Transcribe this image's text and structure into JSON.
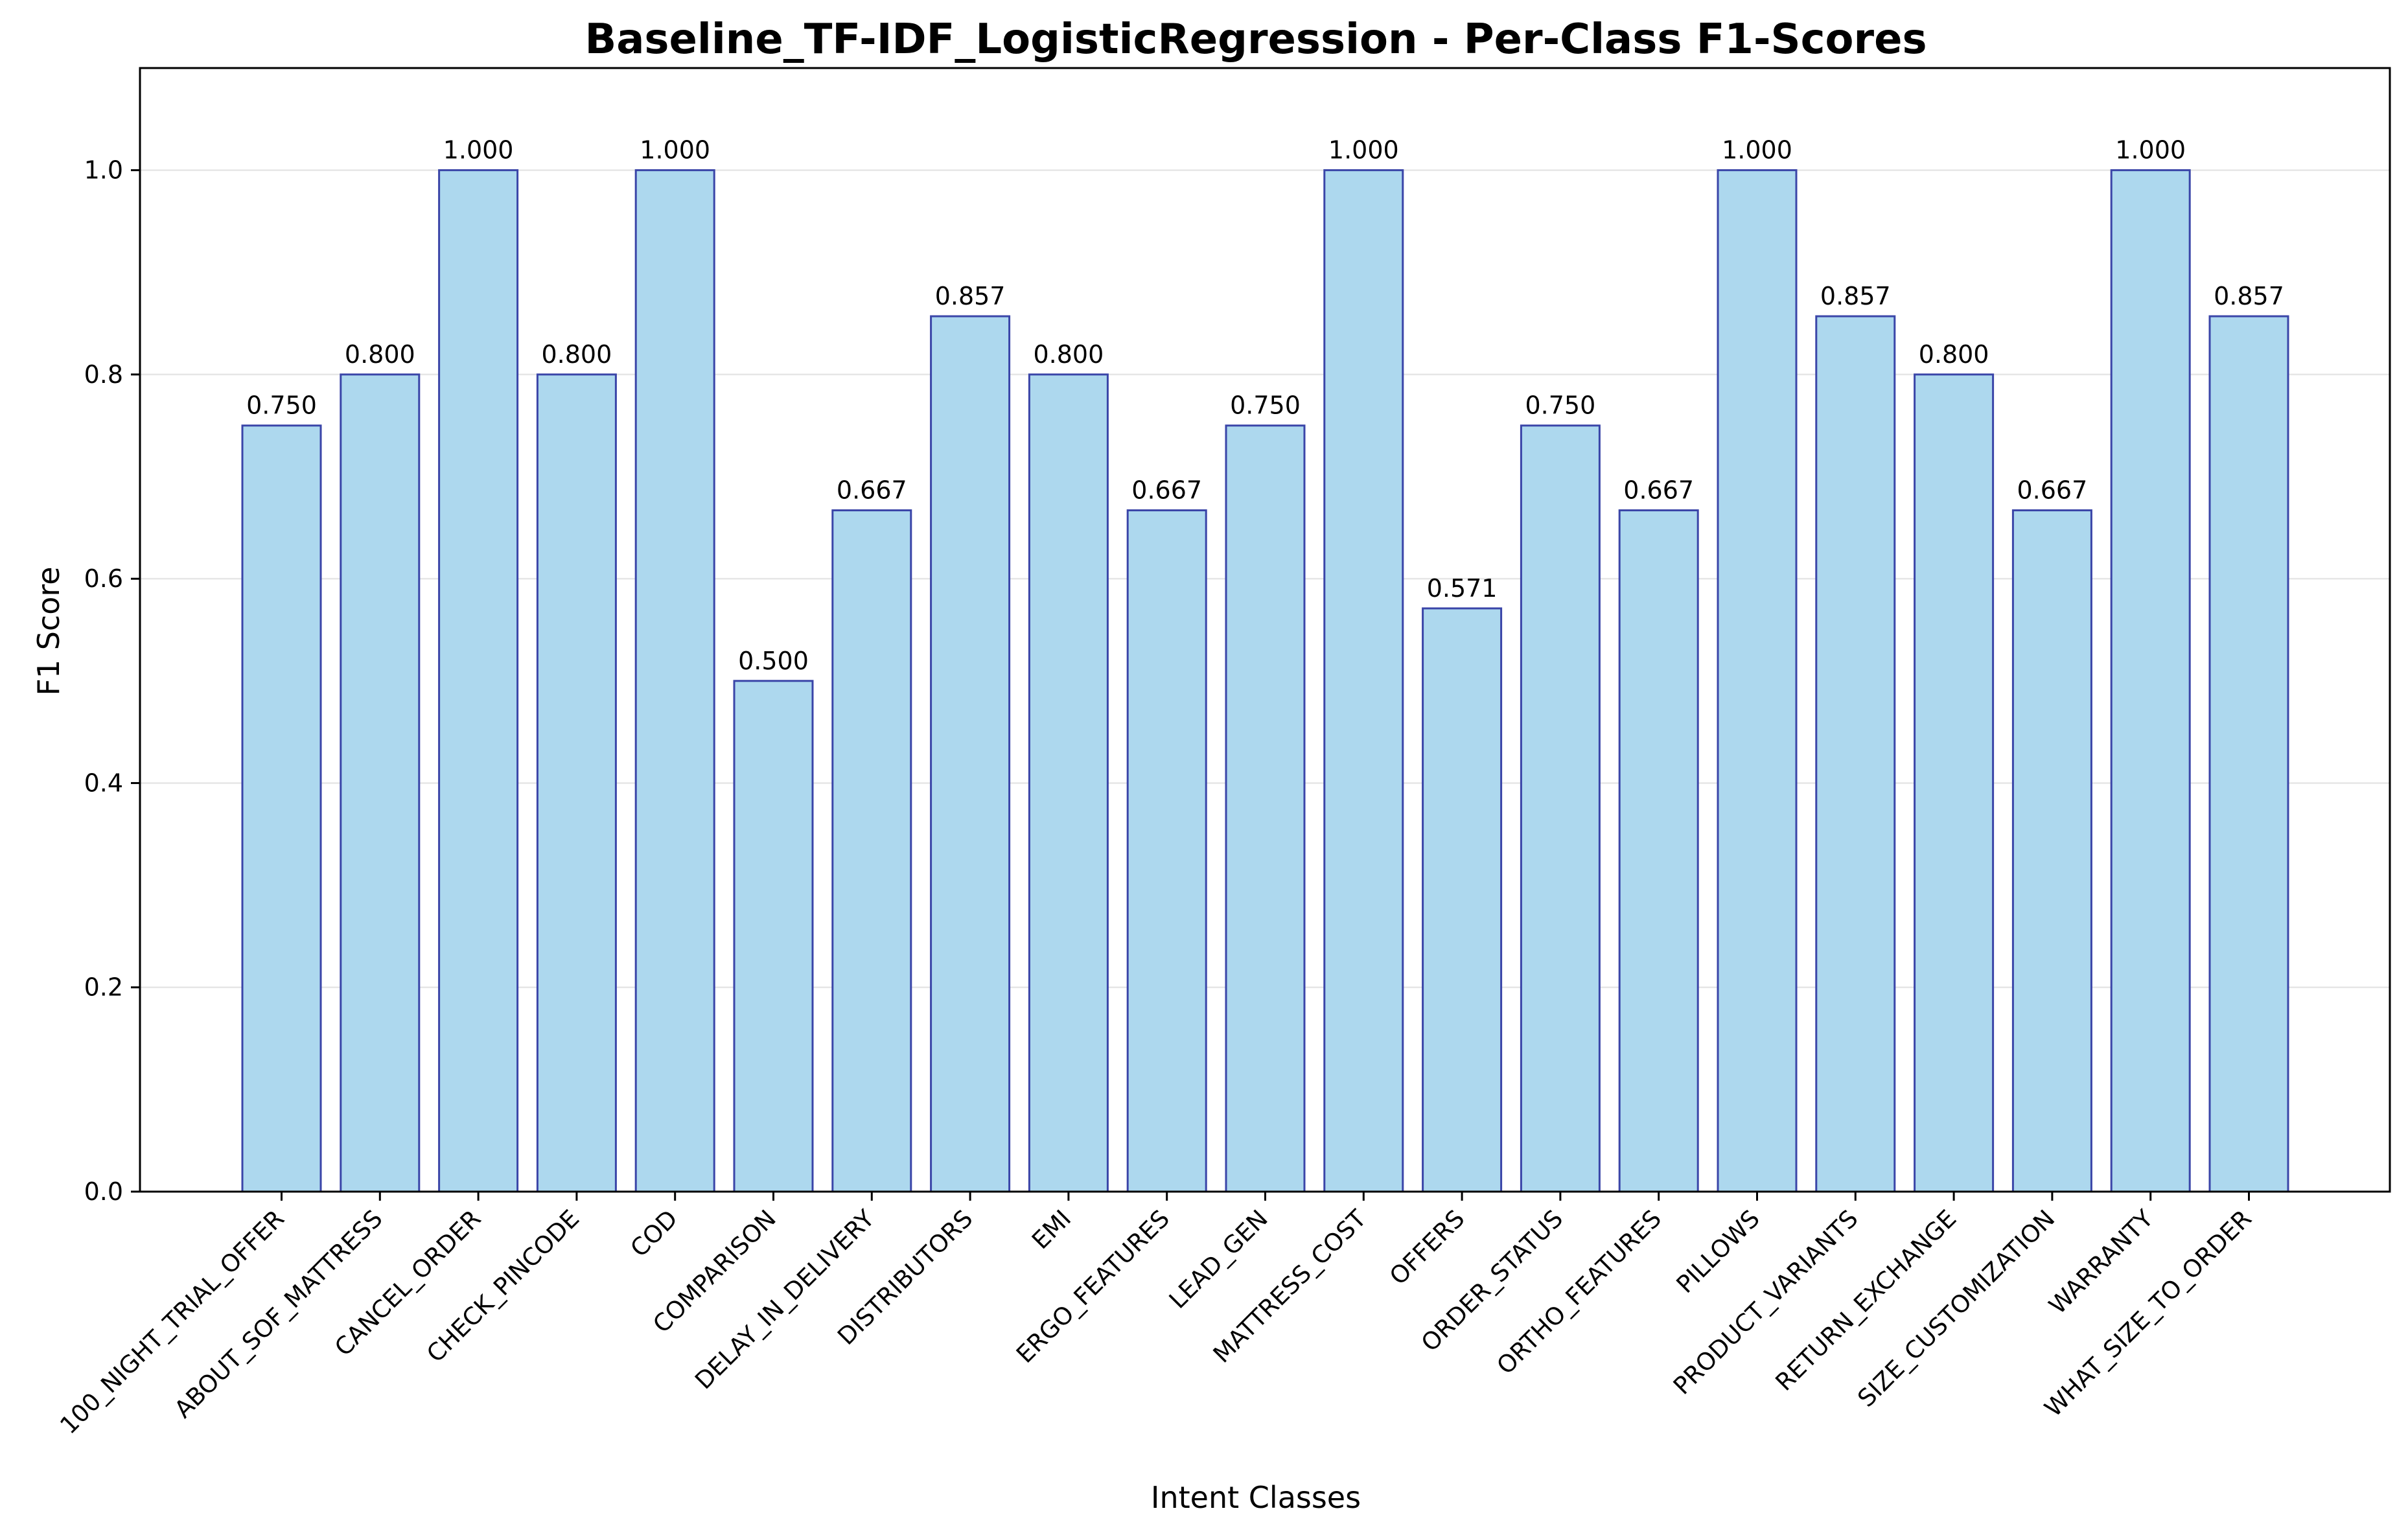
{
  "chart_data": {
    "type": "bar",
    "title": "Baseline_TF-IDF_LogisticRegression - Per-Class F1-Scores",
    "xlabel": "Intent Classes",
    "ylabel": "F1 Score",
    "ylim": [
      0,
      1.1
    ],
    "yticks": [
      "0.0",
      "0.2",
      "0.4",
      "0.6",
      "0.8",
      "1.0"
    ],
    "grid": "horizontal",
    "categories": [
      "100_NIGHT_TRIAL_OFFER",
      "ABOUT_SOF_MATTRESS",
      "CANCEL_ORDER",
      "CHECK_PINCODE",
      "COD",
      "COMPARISON",
      "DELAY_IN_DELIVERY",
      "DISTRIBUTORS",
      "EMI",
      "ERGO_FEATURES",
      "LEAD_GEN",
      "MATTRESS_COST",
      "OFFERS",
      "ORDER_STATUS",
      "ORTHO_FEATURES",
      "PILLOWS",
      "PRODUCT_VARIANTS",
      "RETURN_EXCHANGE",
      "SIZE_CUSTOMIZATION",
      "WARRANTY",
      "WHAT_SIZE_TO_ORDER"
    ],
    "values": [
      0.75,
      0.8,
      1.0,
      0.8,
      1.0,
      0.5,
      0.667,
      0.857,
      0.8,
      0.667,
      0.75,
      1.0,
      0.571,
      0.75,
      0.667,
      1.0,
      0.857,
      0.8,
      0.667,
      1.0,
      0.857
    ],
    "value_labels": [
      "0.750",
      "0.800",
      "1.000",
      "0.800",
      "1.000",
      "0.500",
      "0.667",
      "0.857",
      "0.800",
      "0.667",
      "0.750",
      "1.000",
      "0.571",
      "0.750",
      "0.667",
      "1.000",
      "0.857",
      "0.800",
      "0.667",
      "1.000",
      "0.857"
    ],
    "colors": {
      "bar_fill": "#add8ee",
      "bar_edge": "#3a45a8",
      "axis": "#000000",
      "grid": "#e6e6e6"
    }
  }
}
